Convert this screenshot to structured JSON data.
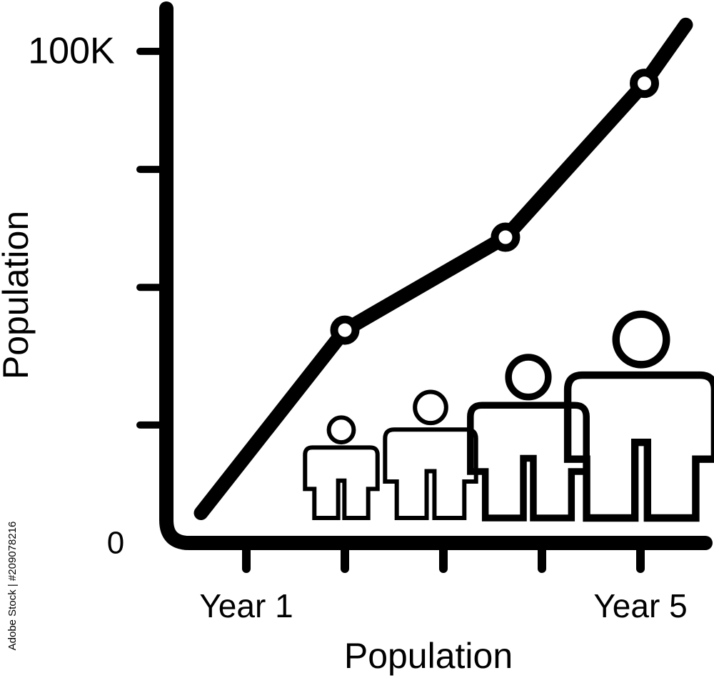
{
  "chart_data": {
    "type": "line",
    "title": null,
    "x_label": "Population",
    "y_label": "Population",
    "watermark": "Adobe Stock | #209078216",
    "x": [
      0.54,
      2.0,
      3.63,
      5.04,
      5.46
    ],
    "series": [
      {
        "name": null,
        "color": "#000000",
        "values": [
          6100,
          43300,
          62200,
          93500,
          105400
        ]
      }
    ],
    "xlim": [
      0.19,
      5.67
    ],
    "xticks": [
      {
        "value": 1,
        "label": "Year 1"
      },
      {
        "value": 2,
        "label": null
      },
      {
        "value": 3,
        "label": null
      },
      {
        "value": 4,
        "label": null
      },
      {
        "value": 5,
        "label": "Year 5"
      }
    ],
    "ylim": [
      0,
      109000
    ],
    "yticks": [
      {
        "value": 0,
        "label": "0"
      },
      {
        "value": 24000,
        "label": null
      },
      {
        "value": 52000,
        "label": null
      },
      {
        "value": 76000,
        "label": null
      },
      {
        "value": 100000,
        "label": "100K"
      }
    ],
    "grid": false
  }
}
